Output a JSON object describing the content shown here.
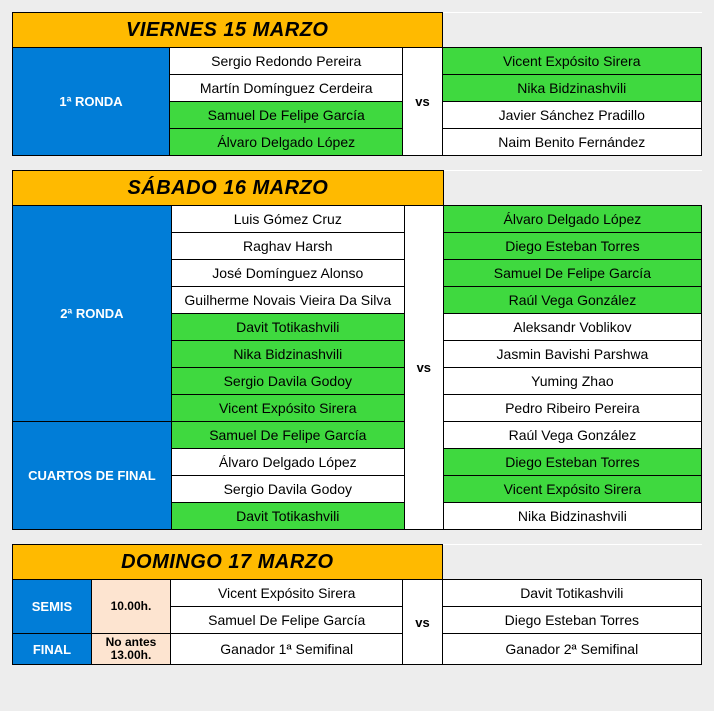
{
  "colors": {
    "header_bg": "#ffba00",
    "round_bg": "#017dd7",
    "round_fg": "#ffffff",
    "time_bg": "#fde4d0",
    "winner_bg": "#3fd93f",
    "page_bg": "#ededed",
    "cell_bg": "#ffffff",
    "border": "#000000",
    "text": "#000000"
  },
  "vs_label": "vs",
  "days": [
    {
      "title": "VIERNES 15 MARZO",
      "header_colspan": 3,
      "has_time_column": false,
      "rounds": [
        {
          "label": "1ª RONDA",
          "matches": [
            {
              "left": [
                "Sergio Redondo Pereira",
                "Martín Domínguez Cerdeira"
              ],
              "right": [
                "Vicent Expósito Sirera",
                "Nika Bidzinashvili"
              ],
              "left_win": false,
              "right_win": true
            },
            {
              "left": [
                "Samuel De Felipe García",
                "Álvaro Delgado López"
              ],
              "right": [
                "Javier Sánchez Pradillo",
                "Naim Benito Fernández"
              ],
              "left_win": true,
              "right_win": false
            }
          ]
        }
      ]
    },
    {
      "title": "SÁBADO 16 MARZO",
      "header_colspan": 3,
      "has_time_column": false,
      "rounds": [
        {
          "label": "2ª RONDA",
          "matches": [
            {
              "left": [
                "Luis Gómez Cruz",
                "Raghav Harsh",
                "José Domínguez Alonso",
                "Guilherme Novais Vieira Da Silva"
              ],
              "right": [
                "Álvaro Delgado López",
                "Diego Esteban Torres",
                "Samuel De Felipe García",
                "Raúl Vega González"
              ],
              "left_win": false,
              "right_win": true
            },
            {
              "left": [
                "Davit Totikashvili",
                "Nika Bidzinashvili",
                "Sergio Davila Godoy",
                "Vicent Expósito Sirera"
              ],
              "right": [
                "Aleksandr Voblikov",
                "Jasmin Bavishi Parshwa",
                "Yuming Zhao",
                "Pedro Ribeiro Pereira"
              ],
              "left_win": true,
              "right_win": false
            }
          ]
        },
        {
          "label": "CUARTOS DE FINAL",
          "matches": [
            {
              "left": [
                "Samuel De Felipe García"
              ],
              "right": [
                "Raúl Vega González"
              ],
              "left_win": true,
              "right_win": false
            },
            {
              "left": [
                "Álvaro Delgado López"
              ],
              "right": [
                "Diego Esteban Torres"
              ],
              "left_win": false,
              "right_win": true
            },
            {
              "left": [
                "Sergio Davila Godoy"
              ],
              "right": [
                "Vicent Expósito Sirera"
              ],
              "left_win": false,
              "right_win": true
            },
            {
              "left": [
                "Davit Totikashvili"
              ],
              "right": [
                "Nika Bidzinashvili"
              ],
              "left_win": true,
              "right_win": false
            }
          ]
        }
      ]
    },
    {
      "title": "DOMINGO 17 MARZO",
      "header_colspan": 4,
      "has_time_column": true,
      "rounds": [
        {
          "label": "SEMIS",
          "time": "10.00h.",
          "matches": [
            {
              "left": [
                "Vicent Expósito Sirera"
              ],
              "right": [
                "Davit Totikashvili"
              ],
              "left_win": false,
              "right_win": false
            },
            {
              "left": [
                "Samuel De Felipe García"
              ],
              "right": [
                "Diego Esteban Torres"
              ],
              "left_win": false,
              "right_win": false
            }
          ]
        },
        {
          "label": "FINAL",
          "time": "No antes 13.00h.",
          "matches": [
            {
              "left": [
                "Ganador 1ª Semifinal"
              ],
              "right": [
                "Ganador 2ª Semifinal"
              ],
              "left_win": false,
              "right_win": false
            }
          ]
        }
      ]
    }
  ]
}
